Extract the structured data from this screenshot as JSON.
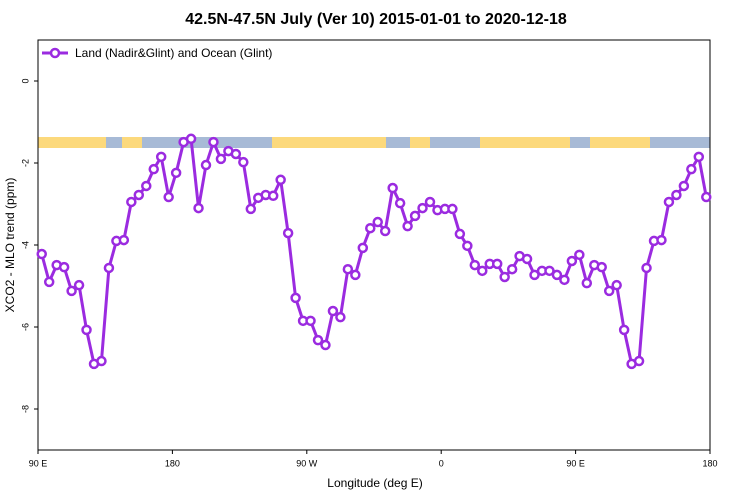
{
  "chart_data": {
    "type": "line",
    "title": "42.5N-47.5N July (Ver 10)   2015-01-01 to 2020-12-18",
    "x_label": "Longitude (deg E)",
    "y_label": "XCO2 - MLO trend (ppm)",
    "legend": "top-left",
    "xlim": [
      90,
      540
    ],
    "xticks": [
      {
        "value": 90,
        "label": "90 E"
      },
      {
        "value": 180,
        "label": "180"
      },
      {
        "value": 270,
        "label": "90 W"
      },
      {
        "value": 360,
        "label": "0"
      },
      {
        "value": 450,
        "label": "90 E"
      },
      {
        "value": 540,
        "label": "180"
      }
    ],
    "ylim": [
      -9,
      1
    ],
    "yticks": [
      0,
      -2,
      -4,
      -6,
      -8
    ],
    "x": [
      92.5,
      97.5,
      102.5,
      107.5,
      112.5,
      117.5,
      122.5,
      127.5,
      132.5,
      137.5,
      142.5,
      147.5,
      152.5,
      157.5,
      162.5,
      167.5,
      172.5,
      177.5,
      182.5,
      187.5,
      192.5,
      197.5,
      202.5,
      207.5,
      212.5,
      217.5,
      222.5,
      227.5,
      232.5,
      237.5,
      242.5,
      247.5,
      252.5,
      257.5,
      262.5,
      267.5,
      272.5,
      277.5,
      282.5,
      287.5,
      292.5,
      297.5,
      302.5,
      307.5,
      312.5,
      317.5,
      322.5,
      327.5,
      332.5,
      337.5,
      342.5,
      347.5,
      352.5,
      357.5,
      362.5,
      367.5,
      372.5,
      377.5,
      382.5,
      387.5,
      392.5,
      397.5,
      402.5,
      407.5,
      412.5,
      417.5,
      422.5,
      427.5,
      432.5,
      437.5,
      442.5,
      447.5,
      452.5,
      457.5,
      462.5,
      467.5,
      472.5,
      477.5,
      482.5,
      487.5,
      492.5,
      497.5,
      502.5,
      507.5,
      512.5,
      517.5,
      522.5,
      527.5,
      532.5,
      537.5
    ],
    "series": [
      {
        "name": "Land (Nadir&Glint) and Ocean (Glint)",
        "color": "#9b2be0",
        "values": [
          -4.22,
          -4.9,
          -4.49,
          -4.54,
          -5.12,
          -4.98,
          -6.07,
          -6.9,
          -6.83,
          -4.56,
          -3.9,
          -3.88,
          -2.95,
          -2.78,
          -2.56,
          -2.15,
          -1.85,
          -2.83,
          -2.24,
          -1.49,
          -1.41,
          -3.1,
          -2.05,
          -1.49,
          -1.9,
          -1.71,
          -1.78,
          -1.98,
          -3.12,
          -2.85,
          -2.78,
          -2.8,
          -2.41,
          -3.71,
          -5.29,
          -5.85,
          -5.85,
          -6.32,
          -6.44,
          -5.61,
          -5.76,
          -4.59,
          -4.73,
          -4.07,
          -3.59,
          -3.44,
          -3.66,
          -2.61,
          -2.98,
          -3.54,
          -3.29,
          -3.1,
          -2.95,
          -3.15,
          -3.12,
          -3.12,
          -3.73,
          -4.02,
          -4.49,
          -4.63,
          -4.46,
          -4.46,
          -4.78,
          -4.59,
          -4.27,
          -4.34,
          -4.73,
          -4.63,
          -4.63,
          -4.73,
          -4.85,
          -4.39,
          -4.24,
          -4.93,
          -4.49,
          -4.54,
          -5.12,
          -4.98,
          -6.07,
          -6.9,
          -6.83,
          -4.56,
          -3.9,
          -3.88,
          -2.95,
          -2.78,
          -2.56,
          -2.15,
          -1.85,
          -2.83
        ]
      }
    ]
  }
}
